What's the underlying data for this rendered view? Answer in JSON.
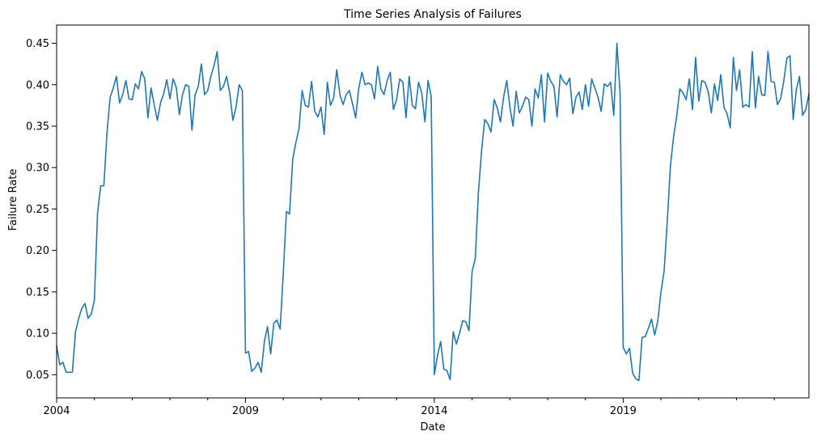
{
  "chart_data": {
    "type": "line",
    "title": "Time Series Analysis of Failures",
    "xlabel": "Date",
    "ylabel": "Failure Rate",
    "x_tick_labels": [
      "2004",
      "2009",
      "2014",
      "2019"
    ],
    "y_tick_labels": [
      "0.05",
      "0.10",
      "0.15",
      "0.20",
      "0.25",
      "0.30",
      "0.35",
      "0.40",
      "0.45"
    ],
    "xlim": [
      "2004-01",
      "2023-12"
    ],
    "ylim": [
      0.022,
      0.472
    ],
    "grid": false,
    "series_color": "#1f77b4",
    "series": [
      {
        "values": [
          [
            "2004-01",
            0.085
          ],
          [
            "2004-02",
            0.062
          ],
          [
            "2004-03",
            0.065
          ],
          [
            "2004-04",
            0.053
          ],
          [
            "2004-05",
            0.053
          ],
          [
            "2004-06",
            0.053
          ],
          [
            "2004-07",
            0.102
          ],
          [
            "2004-08",
            0.118
          ],
          [
            "2004-09",
            0.13
          ],
          [
            "2004-10",
            0.136
          ],
          [
            "2004-11",
            0.118
          ],
          [
            "2004-12",
            0.123
          ],
          [
            "2005-01",
            0.14
          ],
          [
            "2005-02",
            0.245
          ],
          [
            "2005-03",
            0.278
          ],
          [
            "2005-04",
            0.278
          ],
          [
            "2005-05",
            0.342
          ],
          [
            "2005-06",
            0.385
          ],
          [
            "2005-07",
            0.396
          ],
          [
            "2005-08",
            0.41
          ],
          [
            "2005-09",
            0.378
          ],
          [
            "2005-10",
            0.388
          ],
          [
            "2005-11",
            0.405
          ],
          [
            "2005-12",
            0.383
          ],
          [
            "2006-01",
            0.382
          ],
          [
            "2006-02",
            0.401
          ],
          [
            "2006-03",
            0.395
          ],
          [
            "2006-04",
            0.416
          ],
          [
            "2006-05",
            0.407
          ],
          [
            "2006-06",
            0.36
          ],
          [
            "2006-07",
            0.396
          ],
          [
            "2006-08",
            0.376
          ],
          [
            "2006-09",
            0.357
          ],
          [
            "2006-10",
            0.378
          ],
          [
            "2006-11",
            0.389
          ],
          [
            "2006-12",
            0.406
          ],
          [
            "2007-01",
            0.383
          ],
          [
            "2007-02",
            0.407
          ],
          [
            "2007-03",
            0.397
          ],
          [
            "2007-04",
            0.364
          ],
          [
            "2007-05",
            0.388
          ],
          [
            "2007-06",
            0.4
          ],
          [
            "2007-07",
            0.398
          ],
          [
            "2007-08",
            0.345
          ],
          [
            "2007-09",
            0.388
          ],
          [
            "2007-10",
            0.398
          ],
          [
            "2007-11",
            0.425
          ],
          [
            "2007-12",
            0.388
          ],
          [
            "2008-01",
            0.393
          ],
          [
            "2008-02",
            0.41
          ],
          [
            "2008-03",
            0.423
          ],
          [
            "2008-04",
            0.44
          ],
          [
            "2008-05",
            0.393
          ],
          [
            "2008-06",
            0.398
          ],
          [
            "2008-07",
            0.41
          ],
          [
            "2008-08",
            0.39
          ],
          [
            "2008-09",
            0.357
          ],
          [
            "2008-10",
            0.373
          ],
          [
            "2008-11",
            0.4
          ],
          [
            "2008-12",
            0.393
          ],
          [
            "2009-01",
            0.076
          ],
          [
            "2009-02",
            0.078
          ],
          [
            "2009-03",
            0.054
          ],
          [
            "2009-04",
            0.058
          ],
          [
            "2009-05",
            0.065
          ],
          [
            "2009-06",
            0.053
          ],
          [
            "2009-07",
            0.09
          ],
          [
            "2009-08",
            0.108
          ],
          [
            "2009-09",
            0.075
          ],
          [
            "2009-10",
            0.112
          ],
          [
            "2009-11",
            0.116
          ],
          [
            "2009-12",
            0.105
          ],
          [
            "2010-01",
            0.172
          ],
          [
            "2010-02",
            0.247
          ],
          [
            "2010-03",
            0.244
          ],
          [
            "2010-04",
            0.31
          ],
          [
            "2010-05",
            0.33
          ],
          [
            "2010-06",
            0.347
          ],
          [
            "2010-07",
            0.393
          ],
          [
            "2010-08",
            0.375
          ],
          [
            "2010-09",
            0.373
          ],
          [
            "2010-10",
            0.404
          ],
          [
            "2010-11",
            0.368
          ],
          [
            "2010-12",
            0.361
          ],
          [
            "2011-01",
            0.373
          ],
          [
            "2011-02",
            0.34
          ],
          [
            "2011-03",
            0.403
          ],
          [
            "2011-04",
            0.375
          ],
          [
            "2011-05",
            0.384
          ],
          [
            "2011-06",
            0.418
          ],
          [
            "2011-07",
            0.388
          ],
          [
            "2011-08",
            0.376
          ],
          [
            "2011-09",
            0.388
          ],
          [
            "2011-10",
            0.393
          ],
          [
            "2011-11",
            0.377
          ],
          [
            "2011-12",
            0.36
          ],
          [
            "2012-01",
            0.396
          ],
          [
            "2012-02",
            0.415
          ],
          [
            "2012-03",
            0.4
          ],
          [
            "2012-04",
            0.402
          ],
          [
            "2012-05",
            0.4
          ],
          [
            "2012-06",
            0.383
          ],
          [
            "2012-07",
            0.422
          ],
          [
            "2012-08",
            0.395
          ],
          [
            "2012-09",
            0.388
          ],
          [
            "2012-10",
            0.405
          ],
          [
            "2012-11",
            0.415
          ],
          [
            "2012-12",
            0.37
          ],
          [
            "2013-01",
            0.382
          ],
          [
            "2013-02",
            0.407
          ],
          [
            "2013-03",
            0.403
          ],
          [
            "2013-04",
            0.36
          ],
          [
            "2013-05",
            0.41
          ],
          [
            "2013-06",
            0.375
          ],
          [
            "2013-07",
            0.371
          ],
          [
            "2013-08",
            0.403
          ],
          [
            "2013-09",
            0.39
          ],
          [
            "2013-10",
            0.355
          ],
          [
            "2013-11",
            0.405
          ],
          [
            "2013-12",
            0.386
          ],
          [
            "2014-01",
            0.05
          ],
          [
            "2014-02",
            0.073
          ],
          [
            "2014-03",
            0.09
          ],
          [
            "2014-04",
            0.057
          ],
          [
            "2014-05",
            0.055
          ],
          [
            "2014-06",
            0.044
          ],
          [
            "2014-07",
            0.102
          ],
          [
            "2014-08",
            0.087
          ],
          [
            "2014-09",
            0.1
          ],
          [
            "2014-10",
            0.115
          ],
          [
            "2014-11",
            0.114
          ],
          [
            "2014-12",
            0.103
          ],
          [
            "2015-01",
            0.175
          ],
          [
            "2015-02",
            0.19
          ],
          [
            "2015-03",
            0.27
          ],
          [
            "2015-04",
            0.32
          ],
          [
            "2015-05",
            0.358
          ],
          [
            "2015-06",
            0.353
          ],
          [
            "2015-07",
            0.343
          ],
          [
            "2015-08",
            0.382
          ],
          [
            "2015-09",
            0.372
          ],
          [
            "2015-10",
            0.355
          ],
          [
            "2015-11",
            0.385
          ],
          [
            "2015-12",
            0.405
          ],
          [
            "2016-01",
            0.373
          ],
          [
            "2016-02",
            0.35
          ],
          [
            "2016-03",
            0.392
          ],
          [
            "2016-04",
            0.366
          ],
          [
            "2016-05",
            0.374
          ],
          [
            "2016-06",
            0.385
          ],
          [
            "2016-07",
            0.382
          ],
          [
            "2016-08",
            0.35
          ],
          [
            "2016-09",
            0.395
          ],
          [
            "2016-10",
            0.384
          ],
          [
            "2016-11",
            0.412
          ],
          [
            "2016-12",
            0.355
          ],
          [
            "2017-01",
            0.414
          ],
          [
            "2017-02",
            0.404
          ],
          [
            "2017-03",
            0.398
          ],
          [
            "2017-04",
            0.361
          ],
          [
            "2017-05",
            0.412
          ],
          [
            "2017-06",
            0.404
          ],
          [
            "2017-07",
            0.4
          ],
          [
            "2017-08",
            0.408
          ],
          [
            "2017-09",
            0.365
          ],
          [
            "2017-10",
            0.385
          ],
          [
            "2017-11",
            0.391
          ],
          [
            "2017-12",
            0.37
          ],
          [
            "2018-01",
            0.4
          ],
          [
            "2018-02",
            0.374
          ],
          [
            "2018-03",
            0.407
          ],
          [
            "2018-04",
            0.396
          ],
          [
            "2018-05",
            0.385
          ],
          [
            "2018-06",
            0.368
          ],
          [
            "2018-07",
            0.401
          ],
          [
            "2018-08",
            0.398
          ],
          [
            "2018-09",
            0.403
          ],
          [
            "2018-10",
            0.363
          ],
          [
            "2018-11",
            0.45
          ],
          [
            "2018-12",
            0.39
          ],
          [
            "2019-01",
            0.083
          ],
          [
            "2019-02",
            0.075
          ],
          [
            "2019-03",
            0.082
          ],
          [
            "2019-04",
            0.052
          ],
          [
            "2019-05",
            0.045
          ],
          [
            "2019-06",
            0.043
          ],
          [
            "2019-07",
            0.095
          ],
          [
            "2019-08",
            0.096
          ],
          [
            "2019-09",
            0.106
          ],
          [
            "2019-10",
            0.117
          ],
          [
            "2019-11",
            0.098
          ],
          [
            "2019-12",
            0.115
          ],
          [
            "2020-01",
            0.15
          ],
          [
            "2020-02",
            0.175
          ],
          [
            "2020-03",
            0.235
          ],
          [
            "2020-04",
            0.302
          ],
          [
            "2020-05",
            0.337
          ],
          [
            "2020-06",
            0.362
          ],
          [
            "2020-07",
            0.395
          ],
          [
            "2020-08",
            0.39
          ],
          [
            "2020-09",
            0.382
          ],
          [
            "2020-10",
            0.407
          ],
          [
            "2020-11",
            0.37
          ],
          [
            "2020-12",
            0.433
          ],
          [
            "2021-01",
            0.38
          ],
          [
            "2021-02",
            0.405
          ],
          [
            "2021-03",
            0.403
          ],
          [
            "2021-04",
            0.392
          ],
          [
            "2021-05",
            0.366
          ],
          [
            "2021-06",
            0.401
          ],
          [
            "2021-07",
            0.381
          ],
          [
            "2021-08",
            0.412
          ],
          [
            "2021-09",
            0.373
          ],
          [
            "2021-10",
            0.365
          ],
          [
            "2021-11",
            0.348
          ],
          [
            "2021-12",
            0.433
          ],
          [
            "2022-01",
            0.393
          ],
          [
            "2022-02",
            0.418
          ],
          [
            "2022-03",
            0.373
          ],
          [
            "2022-04",
            0.376
          ],
          [
            "2022-05",
            0.373
          ],
          [
            "2022-06",
            0.44
          ],
          [
            "2022-07",
            0.372
          ],
          [
            "2022-08",
            0.41
          ],
          [
            "2022-09",
            0.388
          ],
          [
            "2022-10",
            0.387
          ],
          [
            "2022-11",
            0.44
          ],
          [
            "2022-12",
            0.404
          ],
          [
            "2023-01",
            0.403
          ],
          [
            "2023-02",
            0.376
          ],
          [
            "2023-03",
            0.383
          ],
          [
            "2023-04",
            0.404
          ],
          [
            "2023-05",
            0.432
          ],
          [
            "2023-06",
            0.435
          ],
          [
            "2023-07",
            0.358
          ],
          [
            "2023-08",
            0.394
          ],
          [
            "2023-09",
            0.41
          ],
          [
            "2023-10",
            0.363
          ],
          [
            "2023-11",
            0.37
          ],
          [
            "2023-12",
            0.389
          ]
        ]
      }
    ]
  }
}
